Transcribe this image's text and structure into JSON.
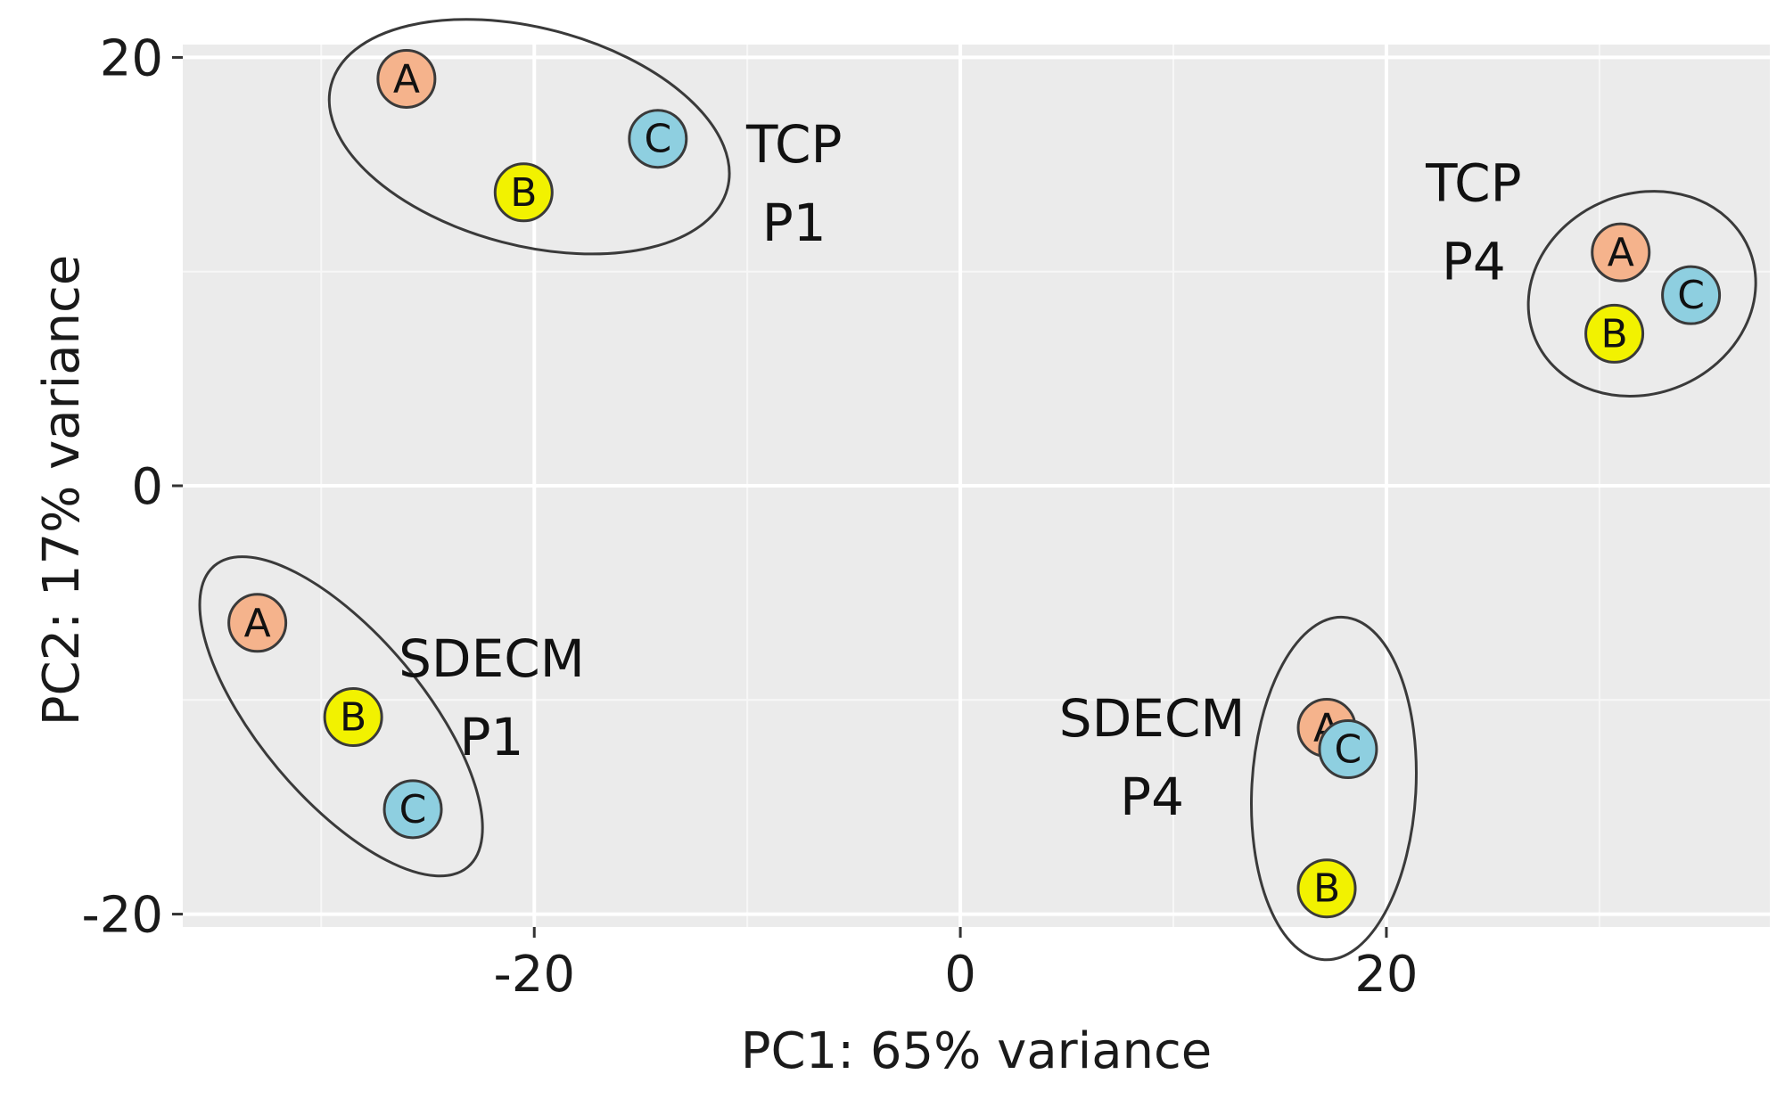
{
  "chart_data": {
    "type": "scatter",
    "title": "",
    "xlabel": "PC1: 65% variance",
    "ylabel": "PC2: 17% variance",
    "xlim": [
      -36.5,
      38
    ],
    "ylim": [
      -20.6,
      20.6
    ],
    "xticks": [
      -20,
      0,
      20
    ],
    "yticks": [
      -20,
      0,
      20
    ],
    "xtick_labels": [
      "-20",
      "0",
      "20"
    ],
    "ytick_labels": [
      "-20",
      "0",
      "20"
    ],
    "grid": true,
    "series": [
      {
        "name": "TCP P1",
        "points": [
          {
            "label": "A",
            "x": -26,
            "y": 19
          },
          {
            "label": "B",
            "x": -20.5,
            "y": 13.7
          },
          {
            "label": "C",
            "x": -14.2,
            "y": 16.2
          }
        ]
      },
      {
        "name": "TCP P4",
        "points": [
          {
            "label": "A",
            "x": 31,
            "y": 10.9
          },
          {
            "label": "B",
            "x": 30.7,
            "y": 7.1
          },
          {
            "label": "C",
            "x": 34.3,
            "y": 8.9
          }
        ]
      },
      {
        "name": "SDECM P1",
        "points": [
          {
            "label": "A",
            "x": -33,
            "y": -6.4
          },
          {
            "label": "B",
            "x": -28.5,
            "y": -10.8
          },
          {
            "label": "C",
            "x": -25.7,
            "y": -15.1
          }
        ]
      },
      {
        "name": "SDECM P4",
        "points": [
          {
            "label": "A",
            "x": 17.2,
            "y": -11.3
          },
          {
            "label": "C",
            "x": 18.2,
            "y": -12.3
          },
          {
            "label": "B",
            "x": 17.2,
            "y": -18.8
          }
        ]
      }
    ],
    "group_labels": [
      {
        "lines": [
          "TCP",
          "P1"
        ],
        "x": -7.8,
        "y": 15.1
      },
      {
        "lines": [
          "TCP",
          "P4"
        ],
        "x": 24.1,
        "y": 13.3
      },
      {
        "lines": [
          "SDECM",
          "P1"
        ],
        "x": -22,
        "y": -8.9
      },
      {
        "lines": [
          "SDECM",
          "P4"
        ],
        "x": 9,
        "y": -11.7
      }
    ],
    "colors": {
      "A": "#f5b38c",
      "B": "#f2f200",
      "C": "#8ecfe0"
    },
    "panel_background": "#ebebeb"
  }
}
